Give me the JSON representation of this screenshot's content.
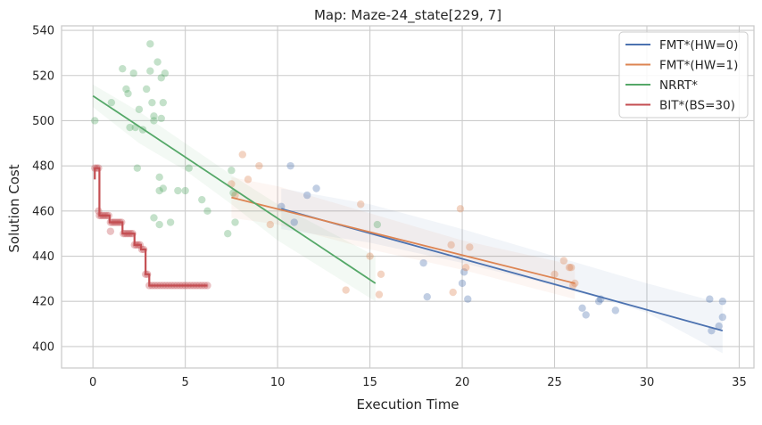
{
  "colors": {
    "fmt0": "#4c72b0",
    "fmt1": "#dd8452",
    "nrrt": "#55a868",
    "bit": "#c44e52",
    "grid": "#cccccc",
    "frame": "#cccccc"
  },
  "chart_data": {
    "type": "scatter",
    "title": "Map: Maze-24_state[229, 7]",
    "xlabel": "Execution Time",
    "ylabel": "Solution Cost",
    "xlim": [
      -1.7,
      35.8
    ],
    "ylim": [
      390.5,
      542
    ],
    "xticks": [
      0,
      5,
      10,
      15,
      20,
      25,
      30,
      35
    ],
    "yticks": [
      400,
      420,
      440,
      460,
      480,
      500,
      520,
      540
    ],
    "grid": true,
    "legend_position": "top-right",
    "series": [
      {
        "name": "FMT*(HW=0)",
        "color_key": "fmt0",
        "points": [
          [
            10.2,
            462
          ],
          [
            10.7,
            480
          ],
          [
            10.9,
            455
          ],
          [
            11.6,
            467
          ],
          [
            12.1,
            470
          ],
          [
            17.9,
            437
          ],
          [
            18.1,
            422
          ],
          [
            20.0,
            428
          ],
          [
            20.1,
            433
          ],
          [
            20.3,
            421
          ],
          [
            26.5,
            417
          ],
          [
            26.7,
            414
          ],
          [
            27.4,
            420
          ],
          [
            27.5,
            421
          ],
          [
            28.3,
            416
          ],
          [
            33.4,
            421
          ],
          [
            33.5,
            407
          ],
          [
            33.9,
            409
          ],
          [
            34.1,
            413
          ],
          [
            34.1,
            420
          ]
        ],
        "fit": [
          [
            10.2,
            461
          ],
          [
            34.1,
            407
          ]
        ],
        "band": [
          [
            10.2,
            470,
            452
          ],
          [
            15.0,
            463,
            446
          ],
          [
            20.0,
            452,
            437
          ],
          [
            25.0,
            440,
            427
          ],
          [
            30.0,
            428,
            415
          ],
          [
            34.1,
            419,
            397
          ]
        ]
      },
      {
        "name": "FMT*(HW=1)",
        "color_key": "fmt1",
        "points": [
          [
            7.5,
            472
          ],
          [
            7.7,
            467
          ],
          [
            8.1,
            485
          ],
          [
            8.4,
            474
          ],
          [
            9.0,
            480
          ],
          [
            9.6,
            454
          ],
          [
            13.7,
            425
          ],
          [
            14.5,
            463
          ],
          [
            15.0,
            440
          ],
          [
            15.5,
            423
          ],
          [
            15.6,
            432
          ],
          [
            19.4,
            445
          ],
          [
            19.5,
            424
          ],
          [
            19.9,
            461
          ],
          [
            20.2,
            435
          ],
          [
            20.4,
            444
          ],
          [
            25.0,
            432
          ],
          [
            25.5,
            438
          ],
          [
            25.8,
            435
          ],
          [
            25.9,
            435
          ],
          [
            26.0,
            427
          ],
          [
            26.1,
            428
          ]
        ],
        "fit": [
          [
            7.5,
            466
          ],
          [
            26.1,
            428
          ]
        ],
        "band": [
          [
            7.5,
            475,
            457
          ],
          [
            10.0,
            471,
            454
          ],
          [
            15.0,
            459,
            443
          ],
          [
            20.0,
            447,
            434
          ],
          [
            26.1,
            436,
            421
          ]
        ]
      },
      {
        "name": "NRRT*",
        "color_key": "nrrt",
        "points": [
          [
            0.1,
            500
          ],
          [
            1.0,
            508
          ],
          [
            1.6,
            523
          ],
          [
            1.8,
            514
          ],
          [
            1.9,
            512
          ],
          [
            2.0,
            497
          ],
          [
            2.2,
            521
          ],
          [
            2.3,
            497
          ],
          [
            2.4,
            479
          ],
          [
            2.5,
            505
          ],
          [
            2.7,
            496
          ],
          [
            2.9,
            514
          ],
          [
            3.1,
            522
          ],
          [
            3.1,
            534
          ],
          [
            3.2,
            508
          ],
          [
            3.3,
            502
          ],
          [
            3.3,
            500
          ],
          [
            3.3,
            457
          ],
          [
            3.5,
            526
          ],
          [
            3.6,
            475
          ],
          [
            3.6,
            469
          ],
          [
            3.6,
            454
          ],
          [
            3.7,
            501
          ],
          [
            3.7,
            519
          ],
          [
            3.8,
            508
          ],
          [
            3.8,
            470
          ],
          [
            3.9,
            521
          ],
          [
            4.2,
            455
          ],
          [
            4.6,
            469
          ],
          [
            5.0,
            469
          ],
          [
            5.2,
            479
          ],
          [
            5.9,
            465
          ],
          [
            6.2,
            460
          ],
          [
            7.3,
            450
          ],
          [
            7.5,
            478
          ],
          [
            7.6,
            468
          ],
          [
            7.7,
            455
          ],
          [
            15.4,
            454
          ]
        ],
        "fit": [
          [
            0.0,
            511
          ],
          [
            15.3,
            428
          ]
        ],
        "band": [
          [
            0.0,
            516,
            506
          ],
          [
            2.5,
            504,
            490
          ],
          [
            5.0,
            490,
            478
          ],
          [
            7.5,
            476,
            463
          ],
          [
            10.0,
            463,
            447
          ],
          [
            15.3,
            440,
            420
          ]
        ]
      },
      {
        "name": "BIT*(BS=30)",
        "color_key": "bit",
        "step": [
          [
            0.1,
            474
          ],
          [
            0.1,
            479
          ],
          [
            0.35,
            479
          ],
          [
            0.35,
            458
          ],
          [
            0.9,
            458
          ],
          [
            0.9,
            455
          ],
          [
            1.6,
            455
          ],
          [
            1.6,
            450
          ],
          [
            2.25,
            450
          ],
          [
            2.25,
            445
          ],
          [
            2.6,
            445
          ],
          [
            2.6,
            443
          ],
          [
            2.85,
            443
          ],
          [
            2.85,
            432
          ],
          [
            3.05,
            432
          ],
          [
            3.05,
            427
          ],
          [
            6.2,
            427
          ]
        ],
        "points": [
          [
            0.1,
            479
          ],
          [
            0.2,
            479
          ],
          [
            0.3,
            479
          ],
          [
            0.35,
            458
          ],
          [
            0.45,
            458
          ],
          [
            0.55,
            458
          ],
          [
            0.65,
            458
          ],
          [
            0.75,
            458
          ],
          [
            0.85,
            458
          ],
          [
            0.95,
            455
          ],
          [
            1.05,
            455
          ],
          [
            1.15,
            455
          ],
          [
            1.25,
            455
          ],
          [
            1.35,
            455
          ],
          [
            1.45,
            455
          ],
          [
            1.55,
            455
          ],
          [
            0.95,
            451
          ],
          [
            0.3,
            460
          ],
          [
            1.65,
            450
          ],
          [
            1.75,
            450
          ],
          [
            1.85,
            450
          ],
          [
            1.95,
            450
          ],
          [
            2.05,
            450
          ],
          [
            2.15,
            450
          ],
          [
            2.25,
            445
          ],
          [
            2.35,
            445
          ],
          [
            2.45,
            445
          ],
          [
            2.55,
            445
          ],
          [
            2.65,
            443
          ],
          [
            2.75,
            443
          ],
          [
            2.85,
            432
          ],
          [
            2.95,
            432
          ],
          [
            3.05,
            427
          ],
          [
            3.2,
            427
          ],
          [
            3.35,
            427
          ],
          [
            3.5,
            427
          ],
          [
            3.65,
            427
          ],
          [
            3.8,
            427
          ],
          [
            3.95,
            427
          ],
          [
            4.1,
            427
          ],
          [
            4.25,
            427
          ],
          [
            4.4,
            427
          ],
          [
            4.55,
            427
          ],
          [
            4.7,
            427
          ],
          [
            4.85,
            427
          ],
          [
            5.0,
            427
          ],
          [
            5.15,
            427
          ],
          [
            5.3,
            427
          ],
          [
            5.45,
            427
          ],
          [
            5.6,
            427
          ],
          [
            5.75,
            427
          ],
          [
            5.9,
            427
          ],
          [
            6.05,
            427
          ],
          [
            6.2,
            427
          ]
        ]
      }
    ]
  }
}
